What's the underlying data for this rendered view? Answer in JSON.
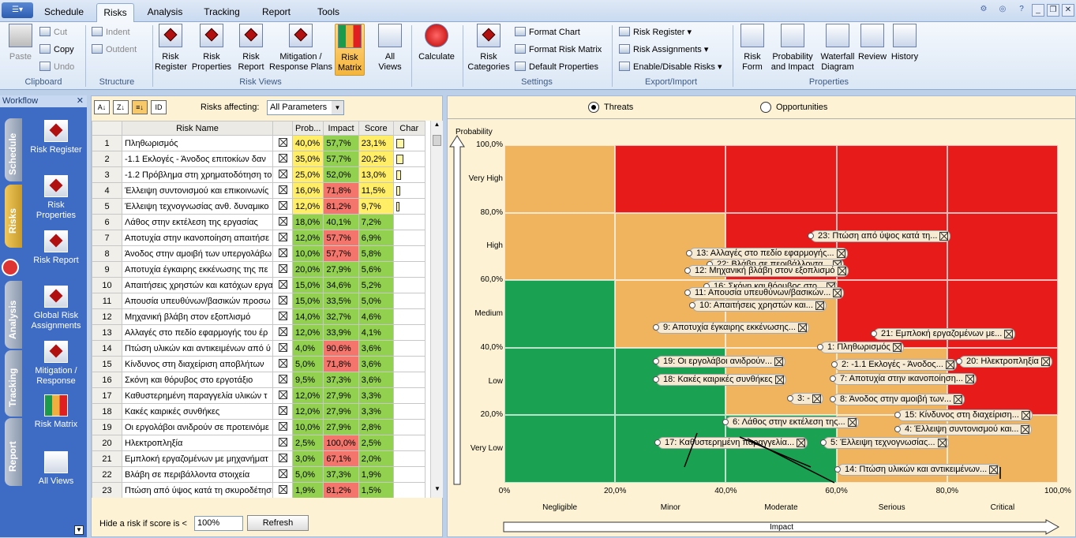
{
  "tabs": [
    "Schedule",
    "Risks",
    "Analysis",
    "Tracking",
    "Report",
    "Tools"
  ],
  "ribbon": {
    "clipboard": {
      "label": "Clipboard",
      "paste": "Paste",
      "cut": "Cut",
      "copy": "Copy",
      "undo": "Undo"
    },
    "structure": {
      "label": "Structure",
      "indent": "Indent",
      "outdent": "Outdent"
    },
    "views": {
      "label": "Risk Views",
      "buttons": [
        "Risk\nRegister",
        "Risk\nProperties",
        "Risk\nReport",
        "Mitigation /\nResponse Plans",
        "Risk\nMatrix",
        "All\nViews"
      ]
    },
    "calculate": "Calculate",
    "settings": {
      "label": "Settings",
      "risk_categories": "Risk\nCategories",
      "format_chart": "Format Chart",
      "format_matrix": "Format Risk Matrix",
      "default_props": "Default Properties"
    },
    "export": {
      "label": "Export/Import",
      "risk_register": "Risk Register",
      "risk_assignments": "Risk Assignments",
      "enable_disable": "Enable/Disable Risks"
    },
    "properties": {
      "label": "Properties",
      "buttons": [
        "Risk\nForm",
        "Probability\nand Impact",
        "Waterfall\nDiagram",
        "Review",
        "History"
      ]
    }
  },
  "workflow": {
    "title": "Workflow",
    "vtabs": [
      "Schedule",
      "Risks",
      "Analysis",
      "Tracking",
      "Report"
    ],
    "items": [
      "Risk Register",
      "Risk\nProperties",
      "Risk Report",
      "Global Risk\nAssignments",
      "Mitigation /\nResponse",
      "Risk Matrix",
      "All Views"
    ]
  },
  "table": {
    "risks_affecting_label": "Risks affecting:",
    "risks_affecting_value": "All Parameters",
    "headers": [
      "",
      "Risk Name",
      "",
      "Prob...",
      "Impact",
      "Score",
      "Char"
    ],
    "rows": [
      [
        "1",
        "Πληθωρισμός",
        "40,0%",
        "57,7%",
        "23,1%"
      ],
      [
        "2",
        "-1.1 Εκλογές - Άνοδος επιτοκίων δαν",
        "35,0%",
        "57,7%",
        "20,2%"
      ],
      [
        "3",
        "-1.2 Πρόβλημα στη χρηματοδότηση τοι",
        "25,0%",
        "52,0%",
        "13,0%"
      ],
      [
        "4",
        "Έλλειψη συντονισμού και επικοινωνίς",
        "16,0%",
        "71,8%",
        "11,5%"
      ],
      [
        "5",
        "Έλλειψη τεχνογνωσίας ανθ. δυναμικο",
        "12,0%",
        "81,2%",
        "9,7%"
      ],
      [
        "6",
        "Λάθος στην εκτέλεση της εργασίας",
        "18,0%",
        "40,1%",
        "7,2%"
      ],
      [
        "7",
        "Αποτυχία στην ικανοποίηση απαιτήσε",
        "12,0%",
        "57,7%",
        "6,9%"
      ],
      [
        "8",
        "Άνοδος στην αμοιβή των υπεργολάβω",
        "10,0%",
        "57,7%",
        "5,8%"
      ],
      [
        "9",
        "Αποτυχία έγκαιρης εκκένωσης της πε",
        "20,0%",
        "27,9%",
        "5,6%"
      ],
      [
        "10",
        "Απαιτήσεις χρηστών και κατόχων εργα",
        "15,0%",
        "34,6%",
        "5,2%"
      ],
      [
        "11",
        "Απουσία υπευθύνων/βασικών προσω",
        "15,0%",
        "33,5%",
        "5,0%"
      ],
      [
        "12",
        "Μηχανική βλάβη στον εξοπλισμό",
        "14,0%",
        "32,7%",
        "4,6%"
      ],
      [
        "13",
        "Αλλαγές στο πεδίο εφαρμογής του έρ",
        "12,0%",
        "33,9%",
        "4,1%"
      ],
      [
        "14",
        "Πτώση υλικών και αντικειμένων από ύ",
        "4,0%",
        "90,6%",
        "3,6%"
      ],
      [
        "15",
        "Κίνδυνος στη διαχείριση αποβλήτων",
        "5,0%",
        "71,8%",
        "3,6%"
      ],
      [
        "16",
        "Σκόνη και θόρυβος στο εργοτάξιο",
        "9,5%",
        "37,3%",
        "3,6%"
      ],
      [
        "17",
        "Καθυστερημένη παραγγελία υλικών τ",
        "12,0%",
        "27,9%",
        "3,3%"
      ],
      [
        "18",
        "Κακές καιρικές συνθήκες",
        "12,0%",
        "27,9%",
        "3,3%"
      ],
      [
        "19",
        "Οι εργολάβοι ανιδρούν σε προτεινόμε",
        "10,0%",
        "27,9%",
        "2,8%"
      ],
      [
        "20",
        "Ηλεκτροπληξία",
        "2,5%",
        "100,0%",
        "2,5%"
      ],
      [
        "21",
        "Εμπλοκή εργαζομένων με μηχανήματ",
        "3,0%",
        "67,1%",
        "2,0%"
      ],
      [
        "22",
        "Βλάβη σε περιβάλλοντα στοιχεία",
        "5,0%",
        "37,3%",
        "1,9%"
      ],
      [
        "23",
        "Πτώση από ύψος κατά τη σκυροδέτηση",
        "1,9%",
        "81,2%",
        "1,5%"
      ]
    ],
    "impact_colors": [
      "#92d050",
      "#92d050",
      "#92d050",
      "#f4756b",
      "#f4756b",
      "#92d050",
      "#f4756b",
      "#f4756b",
      "#92d050",
      "#92d050",
      "#92d050",
      "#92d050",
      "#92d050",
      "#f4756b",
      "#f4756b",
      "#92d050",
      "#92d050",
      "#92d050",
      "#92d050",
      "#f4756b",
      "#f4756b",
      "#92d050",
      "#f4756b"
    ],
    "hide_label": "Hide a risk if score is <",
    "hide_value": "100%",
    "refresh": "Refresh"
  },
  "matrix": {
    "threats": "Threats",
    "opportunities": "Opportunities",
    "prob_title": "Probability",
    "impact_title": "Impact",
    "y_ticks": [
      "100,0%",
      "80,0%",
      "60,0%",
      "40,0%",
      "20,0%"
    ],
    "y_levels": [
      "Very High",
      "High",
      "Medium",
      "Low",
      "Very Low"
    ],
    "x_ticks": [
      "0%",
      "20,0%",
      "40,0%",
      "60,0%",
      "80,0%",
      "100,0%"
    ],
    "x_levels": [
      "Negligible",
      "Minor",
      "Moderate",
      "Serious",
      "Critical"
    ],
    "labels": [
      "23: Πτώση από ύψος κατά τη...",
      "13: Αλλαγές στο πεδίο εφαρμογής...",
      "22: Βλάβη σε περιβάλλοντα...",
      "12: Μηχανική βλάβη στον εξοπλισμό",
      "16: Σκόνη και θόρυβος στο...",
      "11: Απουσία υπευθύνων/βασικών...",
      "10: Απαιτήσεις χρηστών και...",
      "9: Αποτυχία έγκαιρης εκκένωσης...",
      "21: Εμπλοκή εργαζομένων με...",
      "1: Πληθωρισμός",
      "19: Οι εργολάβοι ανιδρούν...",
      "2: -1.1 Εκλογές - Άνοδος...",
      "20: Ηλεκτροπληξία",
      "18: Κακές καιρικές συνθήκες",
      "7: Αποτυχία στην ικανοποίηση...",
      "3: -",
      "8: Άνοδος στην αμοιβή των...",
      "15: Κίνδυνος στη διαχείριση...",
      "6: Λάθος στην εκτέλεση της...",
      "4: Έλλειψη συντονισμού και...",
      "17: Καθυστερημένη παραγγελία...",
      "5: Έλλειψη τεχνογνωσίας...",
      "14: Πτώση υλικών και αντικειμένων..."
    ]
  }
}
